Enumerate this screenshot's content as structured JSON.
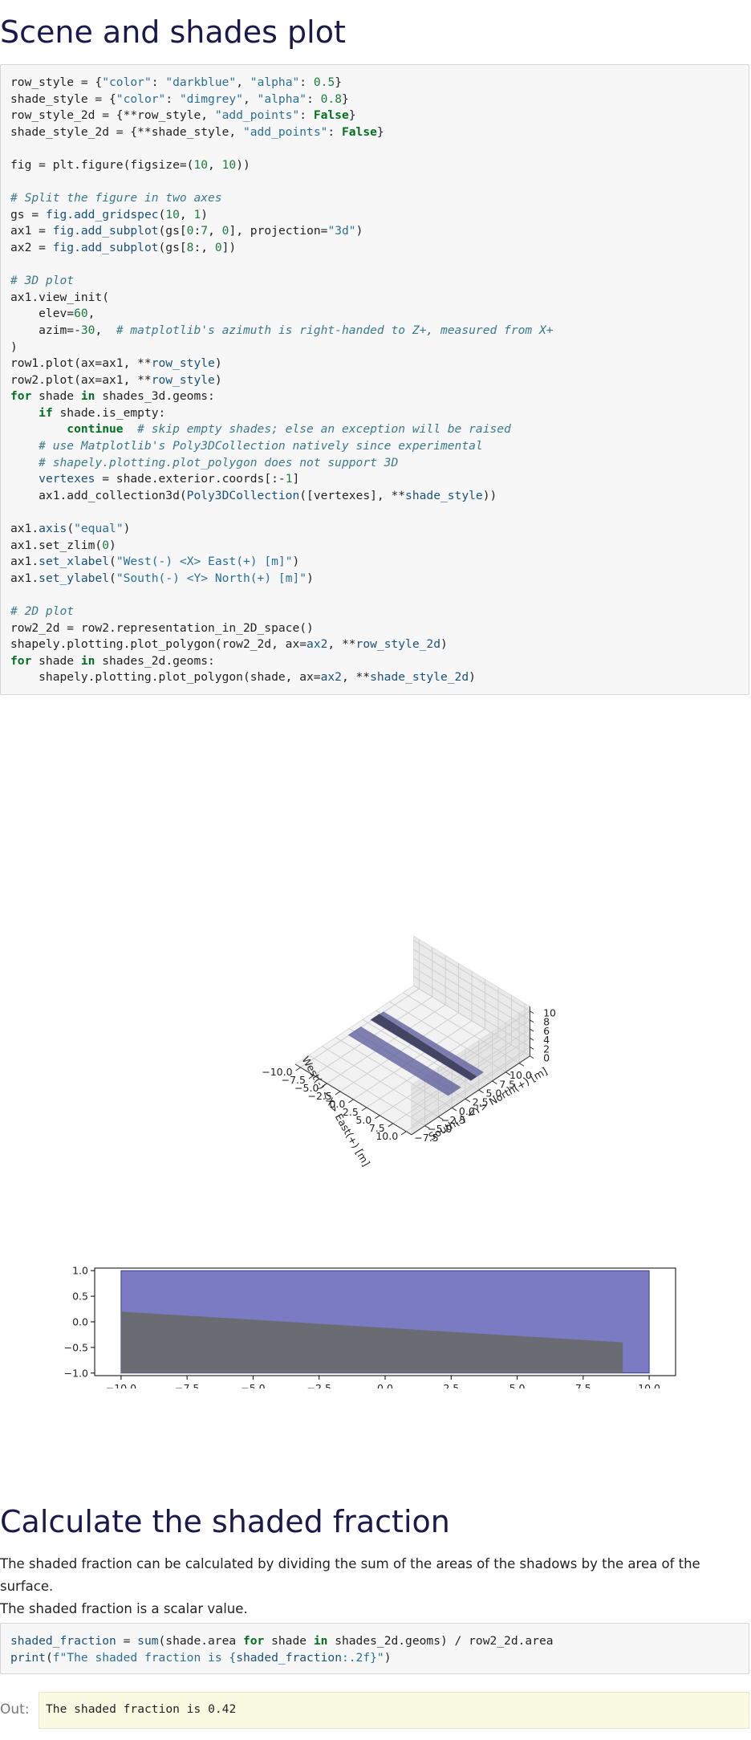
{
  "headings": {
    "scene": "Scene and shades plot",
    "fraction": "Calculate the shaded fraction"
  },
  "code1": [
    [
      [
        "t",
        "row_style = {"
      ],
      [
        "s",
        "\"color\""
      ],
      [
        "t",
        ": "
      ],
      [
        "s",
        "\"darkblue\""
      ],
      [
        "t",
        ", "
      ],
      [
        "s",
        "\"alpha\""
      ],
      [
        "t",
        ": "
      ],
      [
        "n",
        "0.5"
      ],
      [
        "t",
        "}"
      ]
    ],
    [
      [
        "t",
        "shade_style = {"
      ],
      [
        "s",
        "\"color\""
      ],
      [
        "t",
        ": "
      ],
      [
        "s",
        "\"dimgrey\""
      ],
      [
        "t",
        ", "
      ],
      [
        "s",
        "\"alpha\""
      ],
      [
        "t",
        ": "
      ],
      [
        "n",
        "0.8"
      ],
      [
        "t",
        "}"
      ]
    ],
    [
      [
        "t",
        "row_style_2d = {**row_style, "
      ],
      [
        "s",
        "\"add_points\""
      ],
      [
        "t",
        ": "
      ],
      [
        "k",
        "False"
      ],
      [
        "t",
        "}"
      ]
    ],
    [
      [
        "t",
        "shade_style_2d = {**shade_style, "
      ],
      [
        "s",
        "\"add_points\""
      ],
      [
        "t",
        ": "
      ],
      [
        "k",
        "False"
      ],
      [
        "t",
        "}"
      ]
    ],
    [
      [
        "t",
        ""
      ]
    ],
    [
      [
        "t",
        "fig = plt.figure(figsize=("
      ],
      [
        "n",
        "10"
      ],
      [
        "t",
        ", "
      ],
      [
        "n",
        "10"
      ],
      [
        "t",
        "))"
      ]
    ],
    [
      [
        "t",
        ""
      ]
    ],
    [
      [
        "c",
        "# Split the figure in two axes"
      ]
    ],
    [
      [
        "t",
        "gs = "
      ],
      [
        "v",
        "fig.add_gridspec"
      ],
      [
        "t",
        "("
      ],
      [
        "n",
        "10"
      ],
      [
        "t",
        ", "
      ],
      [
        "n",
        "1"
      ],
      [
        "t",
        ")"
      ]
    ],
    [
      [
        "t",
        "ax1 = "
      ],
      [
        "v",
        "fig.add_subplot"
      ],
      [
        "t",
        "(gs["
      ],
      [
        "n",
        "0"
      ],
      [
        "t",
        ":"
      ],
      [
        "n",
        "7"
      ],
      [
        "t",
        ", "
      ],
      [
        "n",
        "0"
      ],
      [
        "t",
        "], projection="
      ],
      [
        "s",
        "\"3d\""
      ],
      [
        "t",
        ")"
      ]
    ],
    [
      [
        "t",
        "ax2 = "
      ],
      [
        "v",
        "fig.add_subplot"
      ],
      [
        "t",
        "(gs["
      ],
      [
        "n",
        "8"
      ],
      [
        "t",
        ":, "
      ],
      [
        "n",
        "0"
      ],
      [
        "t",
        "])"
      ]
    ],
    [
      [
        "t",
        ""
      ]
    ],
    [
      [
        "c",
        "# 3D plot"
      ]
    ],
    [
      [
        "t",
        "ax1.view_init("
      ]
    ],
    [
      [
        "t",
        "    elev="
      ],
      [
        "n",
        "60"
      ],
      [
        "t",
        ","
      ]
    ],
    [
      [
        "t",
        "    azim=-"
      ],
      [
        "n",
        "30"
      ],
      [
        "t",
        ",  "
      ],
      [
        "c",
        "# matplotlib's azimuth is right-handed to Z+, measured from X+"
      ]
    ],
    [
      [
        "t",
        ")"
      ]
    ],
    [
      [
        "t",
        "row1.plot(ax=ax1, **"
      ],
      [
        "v",
        "row_style"
      ],
      [
        "t",
        ")"
      ]
    ],
    [
      [
        "t",
        "row2.plot(ax=ax1, **"
      ],
      [
        "v",
        "row_style"
      ],
      [
        "t",
        ")"
      ]
    ],
    [
      [
        "k",
        "for"
      ],
      [
        "t",
        " shade "
      ],
      [
        "k",
        "in"
      ],
      [
        "t",
        " shades_3d.geoms:"
      ]
    ],
    [
      [
        "t",
        "    "
      ],
      [
        "k",
        "if"
      ],
      [
        "t",
        " shade.is_empty:"
      ]
    ],
    [
      [
        "t",
        "        "
      ],
      [
        "k",
        "continue"
      ],
      [
        "t",
        "  "
      ],
      [
        "c",
        "# skip empty shades; else an exception will be raised"
      ]
    ],
    [
      [
        "t",
        "    "
      ],
      [
        "c",
        "# use Matplotlib's Poly3DCollection natively since experimental"
      ]
    ],
    [
      [
        "t",
        "    "
      ],
      [
        "c",
        "# shapely.plotting.plot_polygon does not support 3D"
      ]
    ],
    [
      [
        "t",
        "    "
      ],
      [
        "v",
        "vertexes"
      ],
      [
        "t",
        " = shade.exterior.coords[:-"
      ],
      [
        "n",
        "1"
      ],
      [
        "t",
        "]"
      ]
    ],
    [
      [
        "t",
        "    ax1.add_collection3d("
      ],
      [
        "v",
        "Poly3DCollection"
      ],
      [
        "t",
        "([vertexes], **"
      ],
      [
        "v",
        "shade_style"
      ],
      [
        "t",
        "))"
      ]
    ],
    [
      [
        "t",
        ""
      ]
    ],
    [
      [
        "t",
        "ax1."
      ],
      [
        "v",
        "axis"
      ],
      [
        "t",
        "("
      ],
      [
        "s",
        "\"equal\""
      ],
      [
        "t",
        ")"
      ]
    ],
    [
      [
        "t",
        "ax1.set_zlim("
      ],
      [
        "n",
        "0"
      ],
      [
        "t",
        ")"
      ]
    ],
    [
      [
        "t",
        "ax1."
      ],
      [
        "v",
        "set_xlabel"
      ],
      [
        "t",
        "("
      ],
      [
        "s",
        "\"West(-) <X> East(+) [m]\""
      ],
      [
        "t",
        ")"
      ]
    ],
    [
      [
        "t",
        "ax1."
      ],
      [
        "v",
        "set_ylabel"
      ],
      [
        "t",
        "("
      ],
      [
        "s",
        "\"South(-) <Y> North(+) [m]\""
      ],
      [
        "t",
        ")"
      ]
    ],
    [
      [
        "t",
        ""
      ]
    ],
    [
      [
        "c",
        "# 2D plot"
      ]
    ],
    [
      [
        "t",
        "row2_2d = row2.representation_in_2D_space()"
      ]
    ],
    [
      [
        "t",
        "shapely.plotting.plot_polygon(row2_2d, ax="
      ],
      [
        "v",
        "ax2"
      ],
      [
        "t",
        ", **"
      ],
      [
        "v",
        "row_style_2d"
      ],
      [
        "t",
        ")"
      ]
    ],
    [
      [
        "k",
        "for"
      ],
      [
        "t",
        " shade "
      ],
      [
        "k",
        "in"
      ],
      [
        "t",
        " shades_2d.geoms:"
      ]
    ],
    [
      [
        "t",
        "    shapely.plotting.plot_polygon(shade, ax="
      ],
      [
        "v",
        "ax2"
      ],
      [
        "t",
        ", **"
      ],
      [
        "v",
        "shade_style_2d"
      ],
      [
        "t",
        ")"
      ]
    ]
  ],
  "paragraph": [
    "The shaded fraction can be calculated by dividing the sum of the areas of the shadows by the area of the surface.",
    "The shaded fraction is a scalar value."
  ],
  "code2": [
    [
      [
        "v",
        "shaded_fraction"
      ],
      [
        "t",
        " = "
      ],
      [
        "v",
        "sum"
      ],
      [
        "t",
        "(shade.area "
      ],
      [
        "k",
        "for"
      ],
      [
        "t",
        " shade "
      ],
      [
        "k",
        "in"
      ],
      [
        "t",
        " shades_2d.geoms) / row2_2d.area"
      ]
    ],
    [
      [
        "v",
        "print"
      ],
      [
        "t",
        "("
      ],
      [
        "s",
        "f\"The shaded fraction is {"
      ],
      [
        "v",
        "shaded_fraction"
      ],
      [
        "s",
        ":.2f}\""
      ],
      [
        "t",
        ")"
      ]
    ]
  ],
  "output": {
    "label": "Out:",
    "text": "The shaded fraction is 0.42"
  },
  "chart_data": [
    {
      "type": "3d-surface",
      "xlabel": "West(-) <X> East(+) [m]",
      "ylabel": "South(-) <Y> North(+) [m]",
      "x_ticks": [
        "−10.0",
        "−7.5",
        "−5.0",
        "−2.5",
        "0.0",
        "2.5",
        "5.0",
        "7.5",
        "10.0"
      ],
      "y_ticks": [
        "−7.5",
        "−5.0",
        "−2.5",
        "0.0",
        "2.5",
        "5.0",
        "7.5",
        "10.0"
      ],
      "z_ticks": [
        "0",
        "2",
        "4",
        "6",
        "8",
        "10"
      ],
      "view": {
        "elev": 60,
        "azim": -30
      },
      "colors": {
        "row": "#5a5a9a",
        "shade": "#3a3a56"
      }
    },
    {
      "type": "area",
      "x_ticks": [
        "−10.0",
        "−7.5",
        "−5.0",
        "−2.5",
        "0.0",
        "2.5",
        "5.0",
        "7.5",
        "10.0"
      ],
      "y_ticks": [
        "1.0",
        "0.5",
        "0.0",
        "−0.5",
        "−1.0"
      ],
      "xlim": [
        -11,
        11
      ],
      "ylim": [
        -1.05,
        1.05
      ],
      "series": [
        {
          "polygon": [
            [
              -10,
              -1
            ],
            [
              10,
              -1
            ],
            [
              10,
              1
            ],
            [
              -10,
              1
            ]
          ],
          "color": "#7b7bc4"
        },
        {
          "polygon": [
            [
              -10,
              -1
            ],
            [
              9,
              -1
            ],
            [
              9,
              -0.4
            ],
            [
              -10,
              0.2
            ]
          ],
          "color": "#6b6b74"
        }
      ]
    }
  ]
}
